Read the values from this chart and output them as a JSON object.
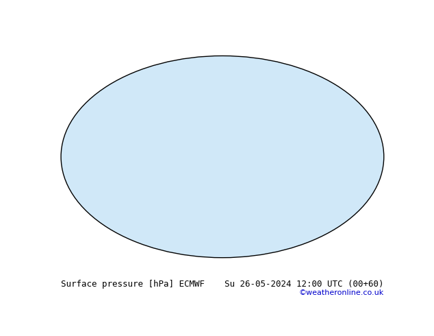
{
  "title_left": "Surface pressure [hPa] ECMWF",
  "title_right": "Su 26-05-2024 12:00 UTC (00+60)",
  "copyright": "©weatheronline.co.uk",
  "bg_color": "#ffffff",
  "map_bg": "#d0e8f8",
  "land_color": "#c8e6a0",
  "isobar_base": 1013,
  "isobar_interval": 4,
  "label_fontsize": 7,
  "title_fontsize": 10,
  "copyright_color": "#0000cc"
}
